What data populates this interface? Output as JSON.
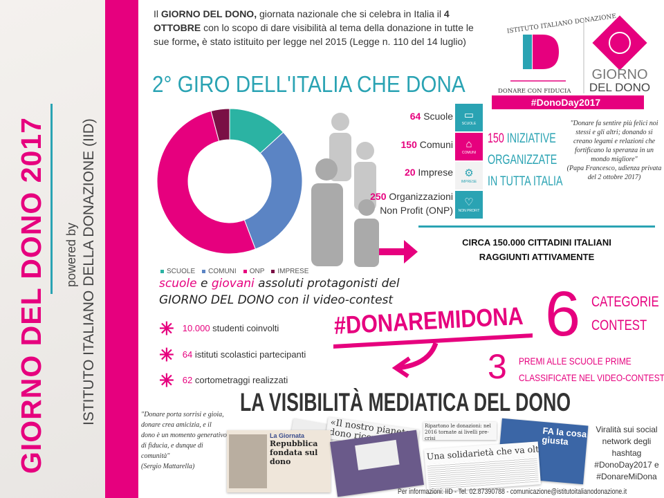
{
  "sidebar": {
    "title": "GIORNO DEL DONO 2017",
    "powered_by": "powered by",
    "institute": "ISTITUTO ITALIANO DELLA DONAZIONE (IID)"
  },
  "intro": {
    "p1": "Il ",
    "b1": "GIORNO DEL DONO,",
    "p2": " giornata nazionale che si celebra in Italia il ",
    "b2": "4 OTTOBRE",
    "p3": " con lo scopo di dare visibilità al tema della donazione in tutte le sue forme",
    "b3": ",",
    "p4": " è stato istituito per legge nel 2015 (Legge n. 110 del 14 luglio)"
  },
  "logo": {
    "iid_arc": "ISTITUTO ITALIANO DONAZIONE",
    "iid_letters": "ID",
    "iid_tagline": "DONARE CON FIDUCIA",
    "gdd_line1": "GIORNO",
    "gdd_line2": "DEL DONO",
    "hashtag": "#DonoDay2017"
  },
  "title": "2° GIRO DELL'ITALIA CHE DONA",
  "chart_data": {
    "type": "pie",
    "donut": true,
    "categories": [
      "SCUOLE",
      "COMUNI",
      "ONP",
      "IMPRESE"
    ],
    "values": [
      64,
      150,
      250,
      20
    ],
    "colors": [
      "#2bb3a3",
      "#5b84c4",
      "#e6007e",
      "#7a1045"
    ],
    "legend_position": "bottom"
  },
  "stats": [
    {
      "num": "64",
      "label": "Scuole"
    },
    {
      "num": "150",
      "label": "Comuni"
    },
    {
      "num": "20",
      "label": "Imprese"
    },
    {
      "num": "250",
      "label": "Organizzazioni Non Profit (ONP)"
    }
  ],
  "icons": [
    {
      "name": "book-icon",
      "label": "SCUOLE",
      "color": "#2aa3b3"
    },
    {
      "name": "building-icon",
      "label": "COMUNI",
      "color": "#e6007e"
    },
    {
      "name": "gears-icon",
      "label": "IMPRESE",
      "color": "#f2f2f2"
    },
    {
      "name": "heart-icon",
      "label": "NON PROFIT",
      "color": "#2aa3b3"
    }
  ],
  "initiatives": {
    "num": "150",
    "line1": " INIZIATIVE",
    "line2": "ORGANIZZATE",
    "line3": "IN TUTTA ITALIA"
  },
  "quote_pope": {
    "text": "\"Donare fa sentire più felici noi stessi e gli altri; donando si creano legami e relazioni che fortificano la speranza in un mondo migliore\"",
    "author": "(Papa Francesco, udienza privata del 2 ottobre 2017)"
  },
  "reach": {
    "line1": "CIRCA 150.000 CITTADINI ITALIANI",
    "line2": "RAGGIUNTI ATTIVAMENTE"
  },
  "subheading": {
    "w1": "scuole",
    "w2": " e ",
    "w3": "giovani",
    "w4": " assoluti protagonisti del",
    "line2": "GIORNO DEL DONO con il video-contest"
  },
  "bullets": [
    {
      "num": "10.000",
      "text": " studenti coinvolti"
    },
    {
      "num": "64",
      "text": " istituti scolastici partecipanti"
    },
    {
      "num": "62",
      "text": " cortometraggi realizzati"
    }
  ],
  "hashtag": "#DONAREMIDONA",
  "contest": {
    "num": "6",
    "line1": "CATEGORIE",
    "line2": "CONTEST"
  },
  "prizes": {
    "num": "3",
    "line1": "PREMI ALLE SCUOLE PRIME",
    "line2": "CLASSIFICATE NEL VIDEO-CONTEST"
  },
  "media_title": "LA VISIBILITÀ MEDIATICA DEL DONO",
  "quote_mattarella": {
    "text": "\"Donare porta sorrisi e gioia, donare crea amicizia, e il dono è un momento generativo di fiducia, e dunque di comunità\"",
    "author": "(Sergio Mattarella)"
  },
  "clippings": {
    "c1_kicker": "La Giornata",
    "c1_headline": "Repubblica fondata sul dono",
    "c2_headline": "«Il nostro pianeta dono ricevuto da con...",
    "c3_headline": "Ripartono le donazioni: nel 2016 tornate ai livelli pre-crisi",
    "c4_headline": "Una solidarietà che va oltre le emergenze",
    "c5_text": "FA la cosa giusta"
  },
  "virality": "Viralità sui social network degli hashtag #DonoDay2017 e #DonareMiDona",
  "footer": "Per informazioni: IID - Tel. 02.87390788 - comunicazione@istitutoitalianodonazione.it"
}
